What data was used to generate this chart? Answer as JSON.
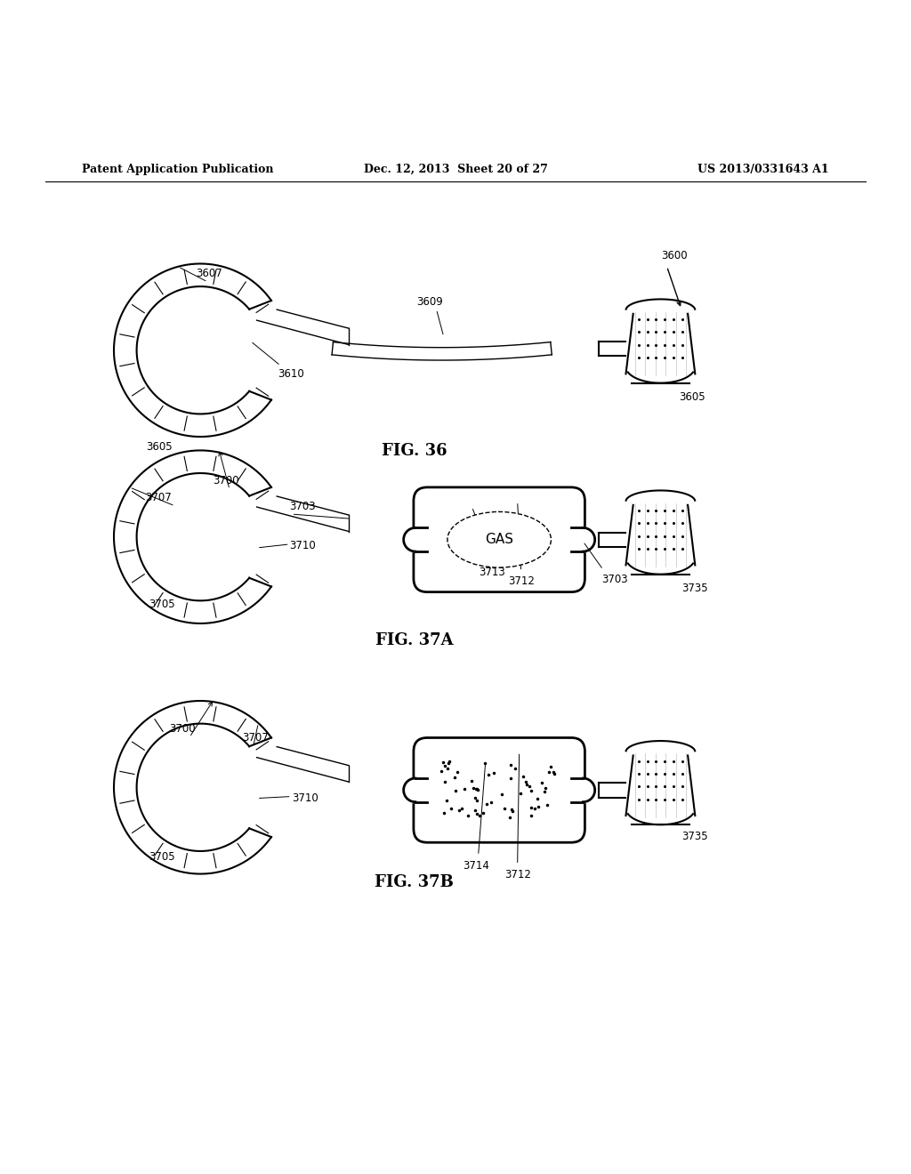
{
  "bg_color": "#ffffff",
  "header_left": "Patent Application Publication",
  "header_mid": "Dec. 12, 2013  Sheet 20 of 27",
  "header_right": "US 2013/0331643 A1",
  "fig36_label": "FIG. 36",
  "fig37a_label": "FIG. 37A",
  "fig37b_label": "FIG. 37B"
}
